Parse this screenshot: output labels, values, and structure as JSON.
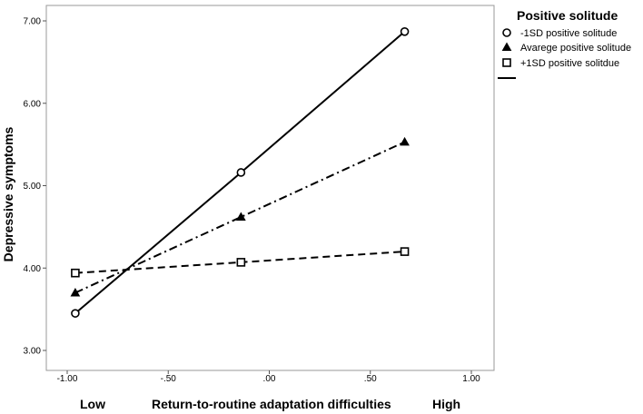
{
  "chart_data": {
    "type": "line",
    "title": "",
    "ylabel": "Depressive symptoms",
    "xlabel": "Return-to-routine adaptation difficulties",
    "x_low_label": "Low",
    "x_high_label": "High",
    "xlim": [
      -1.0,
      1.0
    ],
    "ylim": [
      3.0,
      7.0
    ],
    "x_ticks": [
      -1.0,
      -0.5,
      0.0,
      0.5,
      1.0
    ],
    "x_tick_labels": [
      "-1.00",
      "-.50",
      ".00",
      ".50",
      "1.00"
    ],
    "y_ticks": [
      3.0,
      4.0,
      5.0,
      6.0,
      7.0
    ],
    "y_tick_labels": [
      "3.00",
      "4.00",
      "5.00",
      "6.00",
      "7.00"
    ],
    "grid": false,
    "legend": {
      "title": "Positive solitude",
      "placement": "top-right",
      "entries": [
        "-1SD positive solitude",
        "Avarege positive solitude",
        "+1SD positive solitdue"
      ]
    },
    "series": [
      {
        "name": "-1SD positive solitude",
        "marker": "circle",
        "dash": "solid",
        "x": [
          -0.96,
          -0.14,
          0.67
        ],
        "values": [
          3.45,
          5.16,
          6.87
        ]
      },
      {
        "name": "Avarege positive solitude",
        "marker": "triangle",
        "dash": "dashdot",
        "x": [
          -0.96,
          -0.14,
          0.67
        ],
        "values": [
          3.7,
          4.62,
          5.53
        ]
      },
      {
        "name": "+1SD positive solitdue",
        "marker": "square",
        "dash": "dashed",
        "x": [
          -0.96,
          -0.14,
          0.67
        ],
        "values": [
          3.94,
          4.07,
          4.2
        ]
      }
    ]
  }
}
